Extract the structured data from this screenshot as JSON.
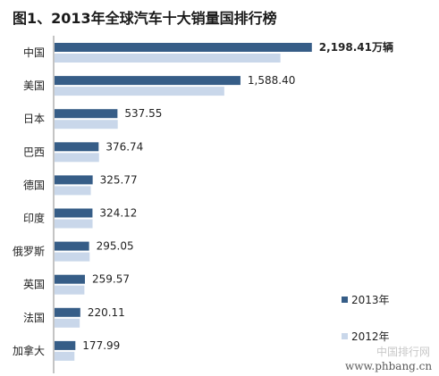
{
  "chart_data": {
    "type": "bar",
    "orientation": "horizontal",
    "title": "图1、2013年全球汽车十大销量国排行榜",
    "categories": [
      "中国",
      "美国",
      "日本",
      "巴西",
      "德国",
      "印度",
      "俄罗斯",
      "英国",
      "法国",
      "加拿大"
    ],
    "series": [
      {
        "name": "2013年",
        "color": "#365d87",
        "values": [
          2198.41,
          1588.4,
          537.55,
          376.74,
          325.77,
          324.12,
          295.05,
          259.57,
          220.11,
          177.99
        ]
      },
      {
        "name": "2012年",
        "color": "#c9d7ea",
        "values": [
          1930,
          1450,
          540,
          380,
          310,
          325,
          300,
          255,
          215,
          170
        ]
      }
    ],
    "data_labels": [
      "2,198.41万辆",
      "1,588.40",
      "537.55",
      "376.74",
      "325.77",
      "324.12",
      "295.05",
      "259.57",
      "220.11",
      "177.99"
    ],
    "legend": {
      "placement": "bottom-right",
      "entries": [
        "2013年",
        "2012年"
      ]
    },
    "grid": false,
    "xlim": [
      0,
      2200
    ]
  },
  "watermark": {
    "line1": "中国排行网",
    "line2": "www.phbang.cn"
  }
}
